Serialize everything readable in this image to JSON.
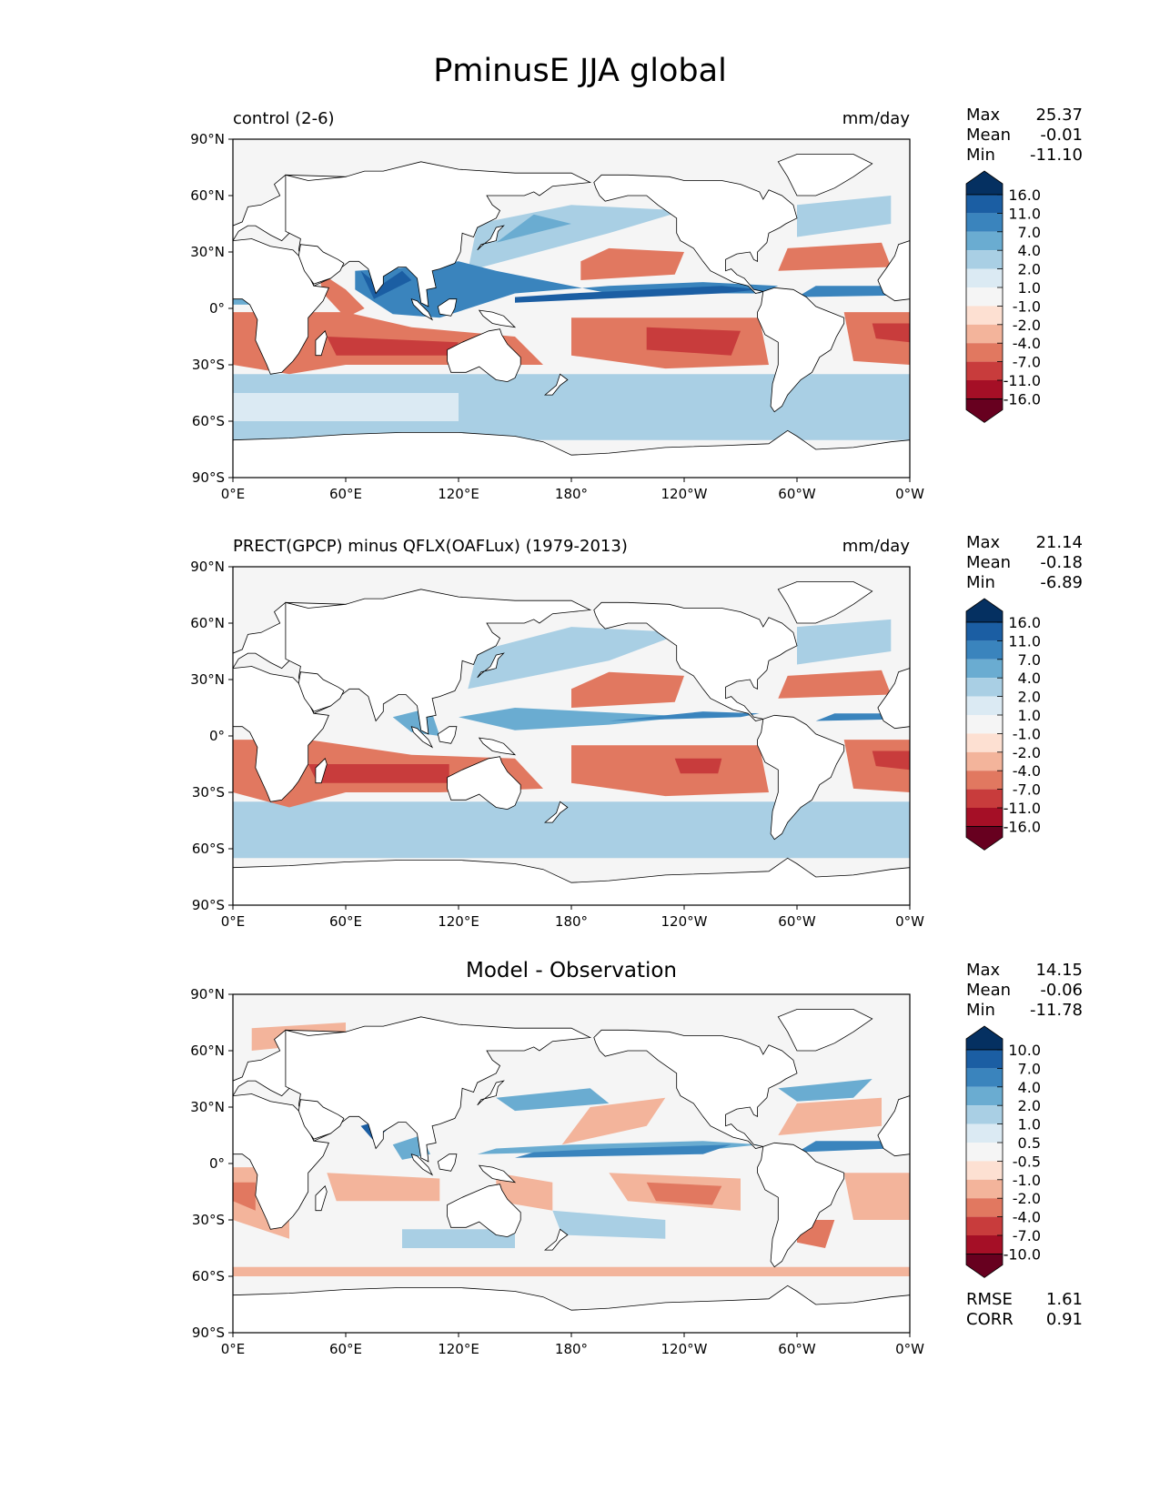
{
  "title": "PminusE JJA global",
  "units": "mm/day",
  "axes": {
    "lat_ticks": [
      "90°N",
      "60°N",
      "30°N",
      "0°",
      "30°S",
      "60°S",
      "90°S"
    ],
    "lon_ticks": [
      "0°E",
      "60°E",
      "120°E",
      "180°",
      "120°W",
      "60°W",
      "0°W"
    ]
  },
  "colors": {
    "diverging": [
      "#67001f",
      "#a50f26",
      "#c83c3c",
      "#e17860",
      "#f3b49b",
      "#fde0d2",
      "#f5f5f5",
      "#dbeaf3",
      "#a9cfe4",
      "#6aacd1",
      "#3a84bd",
      "#1b5ea3",
      "#053061"
    ],
    "land": "#ffffff",
    "ocean_neutral": "#f5f5f5"
  },
  "panels": [
    {
      "title_left": "control (2-6)",
      "title_right": "mm/day",
      "stats": {
        "max_label": "Max",
        "max": "25.37",
        "mean_label": "Mean",
        "mean": "-0.01",
        "min_label": "Min",
        "min": "-11.10"
      },
      "colorbar_labels": [
        "16.0",
        "11.0",
        "7.0",
        "4.0",
        "2.0",
        "1.0",
        "-1.0",
        "-2.0",
        "-4.0",
        "-7.0",
        "-11.0",
        "-16.0"
      ]
    },
    {
      "title_left": "PRECT(GPCP) minus QFLX(OAFLux) (1979-2013)",
      "title_right": "mm/day",
      "stats": {
        "max_label": "Max",
        "max": "21.14",
        "mean_label": "Mean",
        "mean": "-0.18",
        "min_label": "Min",
        "min": "-6.89"
      },
      "colorbar_labels": [
        "16.0",
        "11.0",
        "7.0",
        "4.0",
        "2.0",
        "1.0",
        "-1.0",
        "-2.0",
        "-4.0",
        "-7.0",
        "-11.0",
        "-16.0"
      ]
    },
    {
      "title_center": "Model - Observation",
      "stats": {
        "max_label": "Max",
        "max": "14.15",
        "mean_label": "Mean",
        "mean": "-0.06",
        "min_label": "Min",
        "min": "-11.78"
      },
      "colorbar_labels": [
        "10.0",
        "7.0",
        "4.0",
        "2.0",
        "1.0",
        "0.5",
        "-0.5",
        "-1.0",
        "-2.0",
        "-4.0",
        "-7.0",
        "-10.0"
      ],
      "metrics": {
        "rmse_label": "RMSE",
        "rmse": "1.61",
        "corr_label": "CORR",
        "corr": "0.91"
      }
    }
  ]
}
